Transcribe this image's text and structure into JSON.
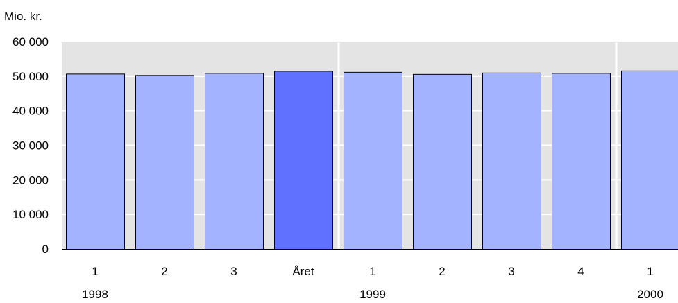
{
  "chart_data": {
    "type": "bar",
    "unit_label": "Mio. kr.",
    "categories": [
      "1",
      "2",
      "3",
      "Året",
      "1",
      "2",
      "3",
      "4",
      "1"
    ],
    "groups": [
      {
        "label": "1998",
        "start": 0,
        "end": 3
      },
      {
        "label": "1999",
        "start": 4,
        "end": 7
      },
      {
        "label": "2000",
        "start": 8,
        "end": 8
      }
    ],
    "values": [
      50700,
      50300,
      50900,
      51500,
      51200,
      50600,
      51000,
      50900,
      51600
    ],
    "highlight_index": 3,
    "ylim": [
      0,
      60000
    ],
    "yticks": [
      0,
      10000,
      20000,
      30000,
      40000,
      50000,
      60000
    ],
    "ytick_labels": [
      "0",
      "10 000",
      "20 000",
      "30 000",
      "40 000",
      "50 000",
      "60 000"
    ],
    "grid": true,
    "colors": {
      "bar": "#a3b3ff",
      "highlight_bar": "#6070ff",
      "plot_bg": "#e4e4e4",
      "grid": "#ffffff",
      "bar_border": "#000000"
    }
  }
}
